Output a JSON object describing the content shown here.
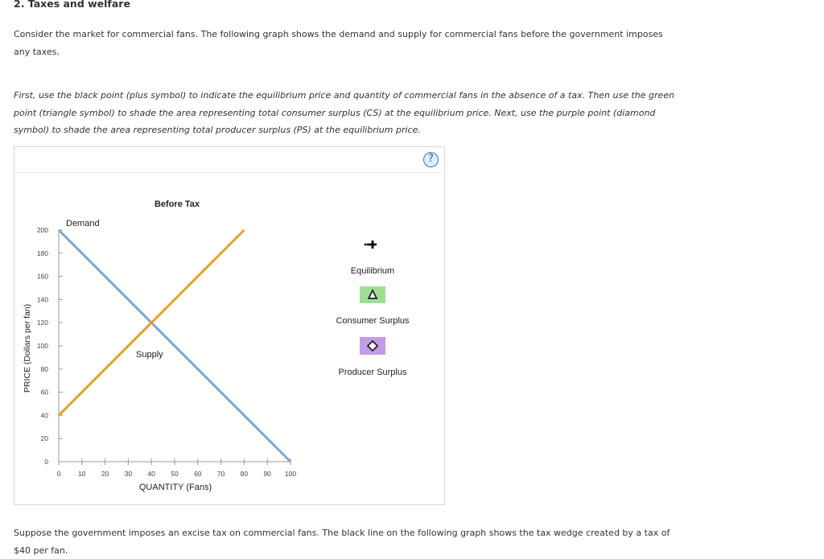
{
  "heading": "2. Taxes and welfare",
  "intro": "Consider the market for commercial fans. The following graph shows the demand and supply for commercial fans before the government imposes any taxes.",
  "instructions": "First, use the black point (plus symbol) to indicate the equilibrium price and quantity of commercial fans in the absence of a tax. Then use the green point (triangle symbol) to shade the area representing total consumer surplus (CS) at the equilibrium price. Next, use the purple point (diamond symbol) to shade the area representing total producer surplus (PS) at the equilibrium price.",
  "help_label": "?",
  "palette": [
    {
      "id": "equilibrium",
      "label": "Equilibrium",
      "icon": "plus-point-icon",
      "color": "#000000"
    },
    {
      "id": "consumer",
      "label": "Consumer Surplus",
      "icon": "triangle-point-icon",
      "color": "#9fdf94"
    },
    {
      "id": "producer",
      "label": "Producer Surplus",
      "icon": "diamond-point-icon",
      "color": "#c39be6"
    }
  ],
  "outro": "Suppose the government imposes an excise tax on commercial fans. The black line on the following graph shows the tax wedge created by a tax of $40 per fan.",
  "chart_data": {
    "type": "line",
    "title": "Before Tax",
    "xlabel": "QUANTITY (Fans)",
    "ylabel": "PRICE (Dollars per fan)",
    "xlim": [
      0,
      100
    ],
    "ylim": [
      0,
      200
    ],
    "xticks": [
      0,
      10,
      20,
      30,
      40,
      50,
      60,
      70,
      80,
      90,
      100
    ],
    "yticks": [
      0,
      20,
      40,
      60,
      80,
      100,
      120,
      140,
      160,
      180,
      200
    ],
    "grid": false,
    "series": [
      {
        "name": "Demand",
        "color": "#7ea6d2",
        "x": [
          0,
          100
        ],
        "y": [
          200,
          0
        ]
      },
      {
        "name": "Supply",
        "color": "#f39c1f",
        "x": [
          0,
          80
        ],
        "y": [
          40,
          200
        ]
      }
    ]
  }
}
